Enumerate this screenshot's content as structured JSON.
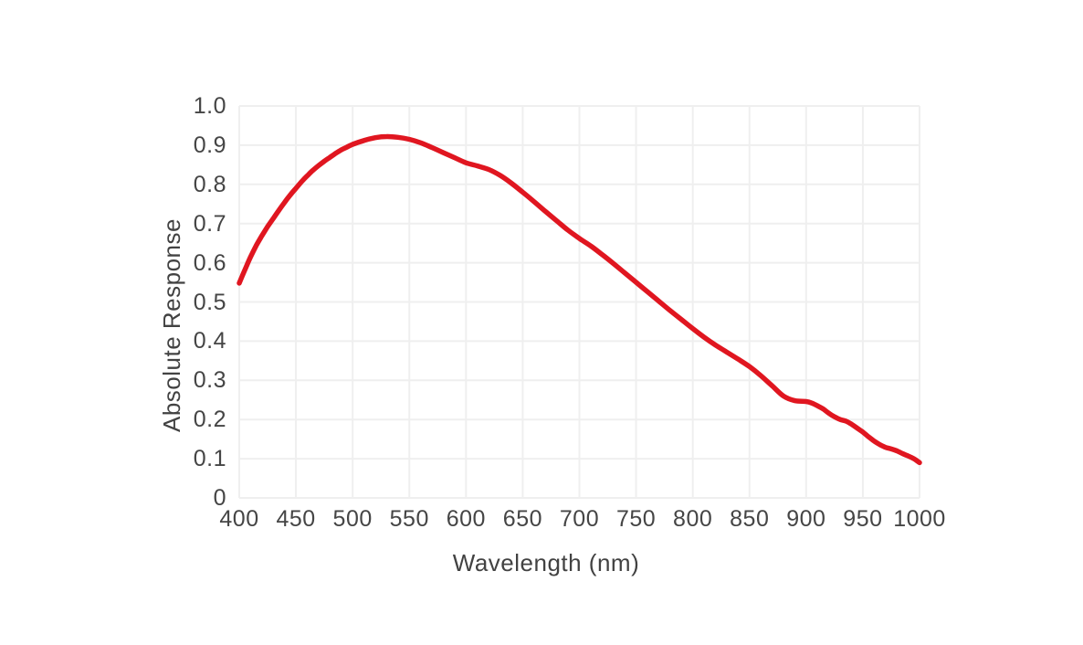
{
  "colors": {
    "background": "#ffffff",
    "grid": "#efefef",
    "text": "#454545",
    "curve_red": "#e01620"
  },
  "chart_data": {
    "type": "line",
    "title": "",
    "xlabel": "Wavelength (nm)",
    "ylabel": "Absolute Response",
    "xlim": [
      400,
      1000
    ],
    "ylim": [
      0,
      1.0
    ],
    "grid": true,
    "legend": "none",
    "x_tick_values": [
      400,
      450,
      500,
      550,
      600,
      650,
      700,
      750,
      800,
      850,
      900,
      950,
      1000
    ],
    "x_tick_labels": [
      "400",
      "450",
      "500",
      "550",
      "600",
      "650",
      "700",
      "750",
      "800",
      "850",
      "900",
      "950",
      "1000"
    ],
    "y_tick_values": [
      1.0,
      0.9,
      0.8,
      0.7,
      0.6,
      0.5,
      0.4,
      0.3,
      0.2,
      0.1,
      0
    ],
    "y_tick_labels": [
      "1.0",
      "0.9",
      "0.8",
      "0.7",
      "0.6",
      "0.5",
      "0.4",
      "0.3",
      "0.2",
      "0.1",
      "0"
    ],
    "series": [
      {
        "name": "Absolute Response",
        "color": "#e01620",
        "points": [
          [
            400,
            0.548
          ],
          [
            405,
            0.582
          ],
          [
            410,
            0.615
          ],
          [
            415,
            0.644
          ],
          [
            420,
            0.669
          ],
          [
            425,
            0.692
          ],
          [
            430,
            0.713
          ],
          [
            435,
            0.734
          ],
          [
            440,
            0.754
          ],
          [
            445,
            0.773
          ],
          [
            450,
            0.79
          ],
          [
            455,
            0.807
          ],
          [
            460,
            0.822
          ],
          [
            465,
            0.836
          ],
          [
            470,
            0.848
          ],
          [
            475,
            0.859
          ],
          [
            480,
            0.869
          ],
          [
            485,
            0.879
          ],
          [
            490,
            0.888
          ],
          [
            495,
            0.895
          ],
          [
            500,
            0.902
          ],
          [
            510,
            0.912
          ],
          [
            520,
            0.919
          ],
          [
            530,
            0.922
          ],
          [
            540,
            0.92
          ],
          [
            550,
            0.915
          ],
          [
            560,
            0.906
          ],
          [
            570,
            0.894
          ],
          [
            580,
            0.881
          ],
          [
            590,
            0.868
          ],
          [
            600,
            0.855
          ],
          [
            610,
            0.847
          ],
          [
            620,
            0.838
          ],
          [
            630,
            0.823
          ],
          [
            640,
            0.803
          ],
          [
            650,
            0.78
          ],
          [
            660,
            0.756
          ],
          [
            670,
            0.731
          ],
          [
            680,
            0.707
          ],
          [
            690,
            0.683
          ],
          [
            700,
            0.662
          ],
          [
            710,
            0.643
          ],
          [
            720,
            0.621
          ],
          [
            730,
            0.598
          ],
          [
            740,
            0.574
          ],
          [
            750,
            0.55
          ],
          [
            760,
            0.526
          ],
          [
            770,
            0.502
          ],
          [
            780,
            0.478
          ],
          [
            790,
            0.455
          ],
          [
            800,
            0.432
          ],
          [
            810,
            0.41
          ],
          [
            820,
            0.39
          ],
          [
            830,
            0.372
          ],
          [
            840,
            0.354
          ],
          [
            850,
            0.335
          ],
          [
            860,
            0.312
          ],
          [
            870,
            0.286
          ],
          [
            880,
            0.26
          ],
          [
            890,
            0.248
          ],
          [
            900,
            0.246
          ],
          [
            905,
            0.242
          ],
          [
            910,
            0.235
          ],
          [
            915,
            0.227
          ],
          [
            920,
            0.216
          ],
          [
            925,
            0.207
          ],
          [
            930,
            0.2
          ],
          [
            935,
            0.196
          ],
          [
            940,
            0.188
          ],
          [
            945,
            0.178
          ],
          [
            950,
            0.168
          ],
          [
            955,
            0.156
          ],
          [
            960,
            0.145
          ],
          [
            965,
            0.136
          ],
          [
            970,
            0.129
          ],
          [
            975,
            0.125
          ],
          [
            980,
            0.12
          ],
          [
            985,
            0.113
          ],
          [
            990,
            0.107
          ],
          [
            995,
            0.1
          ],
          [
            1000,
            0.09
          ]
        ]
      }
    ]
  }
}
